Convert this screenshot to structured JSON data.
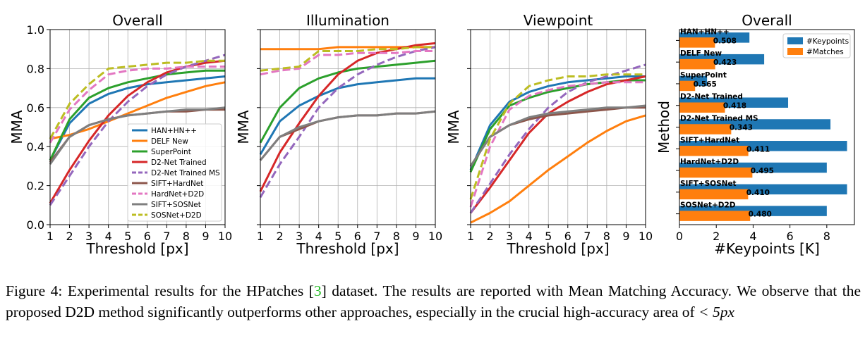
{
  "colors": {
    "HAN+HN++": "#1f77b4",
    "DELF New": "#ff7f0e",
    "SuperPoint": "#2ca02c",
    "D2-Net Trained": "#d62728",
    "D2-Net Trained MS": "#9467bd",
    "SIFT+HardNet": "#8c564b",
    "HardNet+D2D": "#e377c2",
    "SIFT+SOSNet": "#7f7f7f",
    "SOSNet+D2D": "#bcbd22"
  },
  "dashed_series": [
    "D2-Net Trained MS",
    "HardNet+D2D",
    "SOSNet+D2D"
  ],
  "chart_data": [
    {
      "type": "line",
      "title": "Overall",
      "xlabel": "Threshold [px]",
      "ylabel": "MMA",
      "x": [
        1,
        2,
        3,
        4,
        5,
        6,
        7,
        8,
        9,
        10
      ],
      "xlim": [
        1,
        10
      ],
      "ylim": [
        0,
        1
      ],
      "yticks": [
        "0.0",
        "0.2",
        "0.4",
        "0.6",
        "0.8",
        "1.0"
      ],
      "grid": true,
      "legend": "lower-right",
      "series": [
        {
          "name": "HAN+HN++",
          "values": [
            0.33,
            0.52,
            0.62,
            0.67,
            0.7,
            0.72,
            0.73,
            0.74,
            0.75,
            0.76
          ]
        },
        {
          "name": "DELF New",
          "values": [
            0.44,
            0.46,
            0.49,
            0.53,
            0.57,
            0.61,
            0.65,
            0.68,
            0.71,
            0.73
          ]
        },
        {
          "name": "SuperPoint",
          "values": [
            0.33,
            0.54,
            0.65,
            0.7,
            0.73,
            0.75,
            0.77,
            0.78,
            0.79,
            0.79
          ]
        },
        {
          "name": "D2-Net Trained",
          "values": [
            0.11,
            0.28,
            0.43,
            0.56,
            0.66,
            0.73,
            0.78,
            0.81,
            0.83,
            0.84
          ]
        },
        {
          "name": "D2-Net Trained MS",
          "values": [
            0.1,
            0.25,
            0.4,
            0.53,
            0.63,
            0.71,
            0.77,
            0.81,
            0.84,
            0.87
          ]
        },
        {
          "name": "SIFT+HardNet",
          "values": [
            0.32,
            0.45,
            0.51,
            0.54,
            0.56,
            0.57,
            0.58,
            0.58,
            0.59,
            0.59
          ]
        },
        {
          "name": "HardNet+D2D",
          "values": [
            0.42,
            0.59,
            0.69,
            0.77,
            0.79,
            0.8,
            0.8,
            0.81,
            0.81,
            0.81
          ]
        },
        {
          "name": "SIFT+SOSNet",
          "values": [
            0.31,
            0.45,
            0.51,
            0.54,
            0.56,
            0.57,
            0.58,
            0.59,
            0.59,
            0.6
          ]
        },
        {
          "name": "SOSNet+D2D",
          "values": [
            0.44,
            0.62,
            0.72,
            0.8,
            0.81,
            0.82,
            0.83,
            0.83,
            0.84,
            0.84
          ]
        }
      ]
    },
    {
      "type": "line",
      "title": "Illumination",
      "xlabel": "Threshold [px]",
      "ylabel": "MMA",
      "x": [
        1,
        2,
        3,
        4,
        5,
        6,
        7,
        8,
        9,
        10
      ],
      "xlim": [
        1,
        10
      ],
      "ylim": [
        0,
        1
      ],
      "grid": true,
      "series": [
        {
          "name": "HAN+HN++",
          "values": [
            0.36,
            0.53,
            0.61,
            0.66,
            0.7,
            0.72,
            0.73,
            0.74,
            0.75,
            0.75
          ]
        },
        {
          "name": "DELF New",
          "values": [
            0.9,
            0.9,
            0.9,
            0.9,
            0.91,
            0.91,
            0.91,
            0.91,
            0.91,
            0.91
          ]
        },
        {
          "name": "SuperPoint",
          "values": [
            0.42,
            0.6,
            0.7,
            0.75,
            0.78,
            0.8,
            0.81,
            0.82,
            0.83,
            0.84
          ]
        },
        {
          "name": "D2-Net Trained",
          "values": [
            0.17,
            0.37,
            0.52,
            0.66,
            0.77,
            0.84,
            0.88,
            0.9,
            0.92,
            0.93
          ]
        },
        {
          "name": "D2-Net Trained MS",
          "values": [
            0.14,
            0.31,
            0.45,
            0.6,
            0.7,
            0.77,
            0.82,
            0.86,
            0.89,
            0.91
          ]
        },
        {
          "name": "SIFT+HardNet",
          "values": [
            0.33,
            0.45,
            0.49,
            0.53,
            0.55,
            0.56,
            0.56,
            0.57,
            0.57,
            0.58
          ]
        },
        {
          "name": "HardNet+D2D",
          "values": [
            0.77,
            0.79,
            0.8,
            0.87,
            0.87,
            0.88,
            0.88,
            0.88,
            0.89,
            0.89
          ]
        },
        {
          "name": "SIFT+SOSNet",
          "values": [
            0.33,
            0.45,
            0.5,
            0.53,
            0.55,
            0.56,
            0.56,
            0.57,
            0.57,
            0.58
          ]
        },
        {
          "name": "SOSNet+D2D",
          "values": [
            0.79,
            0.8,
            0.81,
            0.89,
            0.89,
            0.89,
            0.9,
            0.9,
            0.91,
            0.91
          ]
        }
      ]
    },
    {
      "type": "line",
      "title": "Viewpoint",
      "xlabel": "Threshold [px]",
      "ylabel": "MMA",
      "x": [
        1,
        2,
        3,
        4,
        5,
        6,
        7,
        8,
        9,
        10
      ],
      "xlim": [
        1,
        10
      ],
      "ylim": [
        0,
        1
      ],
      "grid": true,
      "series": [
        {
          "name": "HAN+HN++",
          "values": [
            0.28,
            0.51,
            0.63,
            0.68,
            0.71,
            0.73,
            0.74,
            0.75,
            0.76,
            0.76
          ]
        },
        {
          "name": "DELF New",
          "values": [
            0.01,
            0.06,
            0.12,
            0.2,
            0.28,
            0.35,
            0.42,
            0.48,
            0.53,
            0.56
          ]
        },
        {
          "name": "SuperPoint",
          "values": [
            0.27,
            0.49,
            0.61,
            0.65,
            0.68,
            0.7,
            0.72,
            0.73,
            0.74,
            0.74
          ]
        },
        {
          "name": "D2-Net Trained",
          "values": [
            0.06,
            0.19,
            0.33,
            0.47,
            0.57,
            0.63,
            0.68,
            0.72,
            0.74,
            0.76
          ]
        },
        {
          "name": "D2-Net Trained MS",
          "values": [
            0.06,
            0.21,
            0.36,
            0.49,
            0.6,
            0.68,
            0.73,
            0.76,
            0.79,
            0.82
          ]
        },
        {
          "name": "SIFT+HardNet",
          "values": [
            0.3,
            0.45,
            0.51,
            0.54,
            0.56,
            0.57,
            0.58,
            0.59,
            0.6,
            0.6
          ]
        },
        {
          "name": "HardNet+D2D",
          "values": [
            0.09,
            0.4,
            0.59,
            0.66,
            0.69,
            0.71,
            0.72,
            0.73,
            0.73,
            0.73
          ]
        },
        {
          "name": "SIFT+SOSNet",
          "values": [
            0.3,
            0.45,
            0.51,
            0.55,
            0.57,
            0.58,
            0.59,
            0.6,
            0.6,
            0.61
          ]
        },
        {
          "name": "SOSNet+D2D",
          "values": [
            0.13,
            0.44,
            0.62,
            0.71,
            0.74,
            0.76,
            0.76,
            0.77,
            0.77,
            0.77
          ]
        }
      ]
    },
    {
      "type": "bar",
      "orientation": "horizontal",
      "title": "Overall",
      "xlabel": "#Keypoints [K]",
      "ylabel": "Method",
      "xlim": [
        0,
        9.5
      ],
      "xticks": [
        0,
        2,
        4,
        6,
        8
      ],
      "legend": "top-right",
      "categories": [
        "HAN+HN++",
        "DELF New",
        "SuperPoint",
        "D2-Net Trained",
        "D2-Net Trained MS",
        "SIFT+HardNet",
        "HardNet+D2D",
        "SIFT+SOSNet",
        "SOSNet+D2D"
      ],
      "series": [
        {
          "name": "#Keypoints",
          "values": [
            3.8,
            4.6,
            1.5,
            5.9,
            8.2,
            9.1,
            8.0,
            9.1,
            8.0
          ]
        },
        {
          "name": "#Matches",
          "values": [
            1.93,
            1.94,
            0.85,
            2.47,
            2.81,
            3.74,
            3.96,
            3.73,
            3.84
          ]
        }
      ],
      "match_labels": [
        "0.508",
        "0.423",
        "0.565",
        "0.418",
        "0.343",
        "0.411",
        "0.495",
        "0.410",
        "0.480"
      ]
    }
  ],
  "caption": {
    "lead": "Figure 4: Experimental results for the HPatches [",
    "ref": "3",
    "middle": "] dataset. The results are reported with Mean Matching Accuracy. We observe that the proposed D2D method significantly outperforms other approaches, especially in the crucial high-accuracy area of ",
    "math": "< 5px"
  }
}
